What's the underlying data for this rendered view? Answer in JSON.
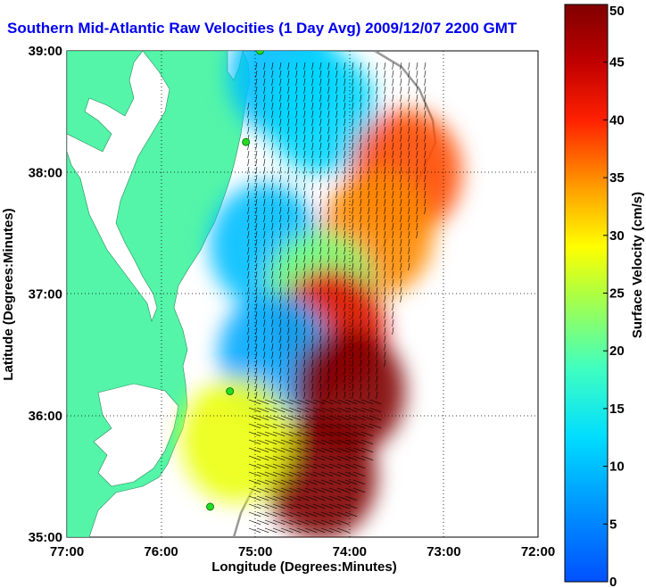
{
  "title": "Southern Mid-Atlantic Raw Velocities (1 Day Avg) 2009/12/07 2200 GMT",
  "chart_data": {
    "type": "heatmap",
    "title": "Southern Mid-Atlantic Raw Velocities (1 Day Avg) 2009/12/07 2200 GMT",
    "xlabel": "Longitude (Degrees:Minutes)",
    "ylabel": "Latitude (Degrees:Minutes)",
    "x_ticks": [
      "77:00",
      "76:00",
      "75:00",
      "74:00",
      "73:00",
      "72:00"
    ],
    "y_ticks": [
      "39:00",
      "38:00",
      "37:00",
      "36:00",
      "35:00"
    ],
    "xlim": [
      -77,
      -72
    ],
    "ylim": [
      35,
      39
    ],
    "grid": true,
    "colorbar": {
      "label": "Surface Velocity (cm/s)",
      "range": [
        0,
        50
      ],
      "ticks": [
        "0",
        "5",
        "10",
        "15",
        "20",
        "25",
        "30",
        "35",
        "40",
        "45",
        "50"
      ],
      "colormap": "jet"
    },
    "regions": [
      {
        "lon": -74.7,
        "lat": 38.8,
        "speed": 10
      },
      {
        "lon": -74.3,
        "lat": 38.5,
        "speed": 12
      },
      {
        "lon": -73.4,
        "lat": 38.0,
        "speed": 38
      },
      {
        "lon": -73.7,
        "lat": 37.5,
        "speed": 35
      },
      {
        "lon": -74.9,
        "lat": 37.4,
        "speed": 10
      },
      {
        "lon": -74.3,
        "lat": 37.0,
        "speed": 22
      },
      {
        "lon": -74.2,
        "lat": 36.7,
        "speed": 42
      },
      {
        "lon": -74.8,
        "lat": 36.5,
        "speed": 8
      },
      {
        "lon": -74.0,
        "lat": 36.2,
        "speed": 50
      },
      {
        "lon": -74.3,
        "lat": 35.5,
        "speed": 50
      },
      {
        "lon": -75.2,
        "lat": 35.8,
        "speed": 28
      }
    ],
    "stations": [
      {
        "lon": -74.95,
        "lat": 39.0
      },
      {
        "lon": -75.1,
        "lat": 38.25
      },
      {
        "lon": -75.27,
        "lat": 36.2
      },
      {
        "lon": -75.48,
        "lat": 35.25
      }
    ]
  },
  "colors": {
    "land": "#54f5a8",
    "water": "#ffffff",
    "title": "#0000ee",
    "grid": "#000000",
    "shelf_line": "#999999",
    "station": "#22dd22"
  }
}
